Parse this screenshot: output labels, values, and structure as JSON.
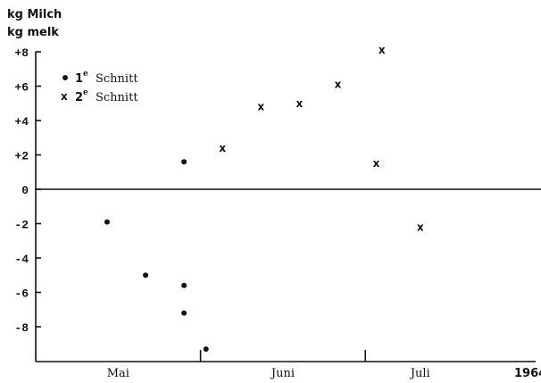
{
  "chart_data": {
    "type": "scatter",
    "ylabel_lines": [
      "kg Milch",
      "kg melk"
    ],
    "ylim": [
      -10,
      8
    ],
    "yticks": [
      {
        "value": 8,
        "label": "+8"
      },
      {
        "value": 6,
        "label": "+6"
      },
      {
        "value": 4,
        "label": "+4"
      },
      {
        "value": 2,
        "label": "+2"
      },
      {
        "value": 0,
        "label": "0"
      },
      {
        "value": -2,
        "label": "-2"
      },
      {
        "value": -4,
        "label": "-4"
      },
      {
        "value": -6,
        "label": "-6"
      },
      {
        "value": -8,
        "label": "-8"
      }
    ],
    "xlim": [
      "1964-05-01",
      "1964-07-31"
    ],
    "month_labels": [
      {
        "label": "Mai",
        "date": "1964-05-16"
      },
      {
        "label": "Juni",
        "date": "1964-06-15"
      },
      {
        "label": "Juli",
        "date": "1964-07-10"
      }
    ],
    "month_boundaries": [
      "1964-05-31",
      "1964-06-30"
    ],
    "year_label": "1964",
    "legend_entries": [
      {
        "number": "1",
        "sup": "e",
        "text": "Schnitt"
      },
      {
        "number": "2",
        "sup": "e",
        "text": "Schnitt"
      }
    ],
    "series": [
      {
        "marker": "dot",
        "points": [
          {
            "x": "1964-05-14",
            "y": -1.9
          },
          {
            "x": "1964-05-21",
            "y": -5.0
          },
          {
            "x": "1964-05-28",
            "y": 1.6
          },
          {
            "x": "1964-05-28",
            "y": -5.6
          },
          {
            "x": "1964-05-28",
            "y": -7.2
          },
          {
            "x": "1964-06-01",
            "y": -9.3
          }
        ]
      },
      {
        "marker": "x",
        "points": [
          {
            "x": "1964-06-04",
            "y": 2.4
          },
          {
            "x": "1964-06-11",
            "y": 4.8
          },
          {
            "x": "1964-06-18",
            "y": 5.0
          },
          {
            "x": "1964-06-25",
            "y": 6.1
          },
          {
            "x": "1964-07-02",
            "y": 1.5
          },
          {
            "x": "1964-07-03",
            "y": 8.1
          },
          {
            "x": "1964-07-10",
            "y": -2.2
          }
        ]
      }
    ]
  }
}
